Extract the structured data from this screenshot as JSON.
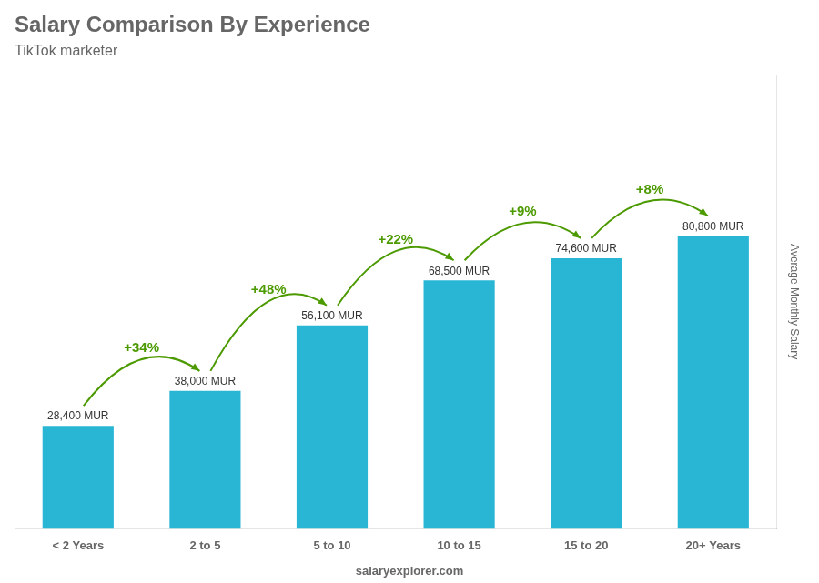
{
  "chart_data": {
    "type": "bar",
    "title": "Salary Comparison By Experience",
    "subtitle": "TikTok marketer",
    "y_label": "Average Monthly Salary",
    "footer": "salaryexplorer.com",
    "categories": [
      "< 2 Years",
      "2 to 5",
      "5 to 10",
      "10 to 15",
      "15 to 20",
      "20+ Years"
    ],
    "values": [
      28400,
      38000,
      56100,
      68500,
      74600,
      80800
    ],
    "value_labels": [
      "28,400 MUR",
      "38,000 MUR",
      "56,100 MUR",
      "68,500 MUR",
      "74,600 MUR",
      "80,800 MUR"
    ],
    "data_labels": true,
    "color": "#29b6d5",
    "ylim": [
      0,
      125240
    ],
    "grid": false,
    "tick_labels": "x",
    "annotations": [
      {
        "from": "< 2 Years",
        "to": "2 to 5",
        "text": "+34%"
      },
      {
        "from": "2 to 5",
        "to": "5 to 10",
        "text": "+48%"
      },
      {
        "from": "5 to 10",
        "to": "10 to 15",
        "text": "+22%"
      },
      {
        "from": "10 to 15",
        "to": "15 to 20",
        "text": "+9%"
      },
      {
        "from": "15 to 20",
        "to": "20+ Years",
        "text": "+8%"
      }
    ]
  }
}
